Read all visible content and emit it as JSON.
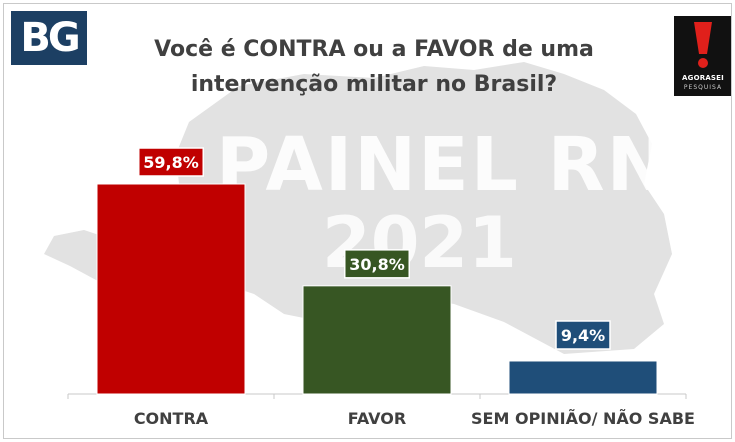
{
  "header": {
    "logo_text": "BG",
    "title_line1": "Você é CONTRA ou a FAVOR de uma",
    "title_line2": "intervenção militar no Brasil?",
    "pollster_name": "AGORASEI",
    "pollster_sub": "PESQUISA"
  },
  "watermark": {
    "line1": "PAINEL RN",
    "line2": "2021"
  },
  "chart_data": {
    "type": "bar",
    "title": "Você é CONTRA ou a FAVOR de uma intervenção militar no Brasil?",
    "categories": [
      "CONTRA",
      "FAVOR",
      "SEM OPINIÃO/ NÃO SABE"
    ],
    "values": [
      59.8,
      30.8,
      9.4
    ],
    "value_labels": [
      "59,8%",
      "30,8%",
      "9,4%"
    ],
    "colors": [
      "#c00000",
      "#375623",
      "#1f4e79"
    ],
    "xlabel": "",
    "ylabel": "",
    "ylim": [
      0,
      70
    ],
    "grid": false,
    "legend": "none"
  },
  "colors": {
    "logo_bg": "#1c3f63",
    "title": "#404040",
    "map_fill": "#e2e2e2",
    "pollster_bg": "#111111",
    "pollster_accent": "#e0201b"
  }
}
